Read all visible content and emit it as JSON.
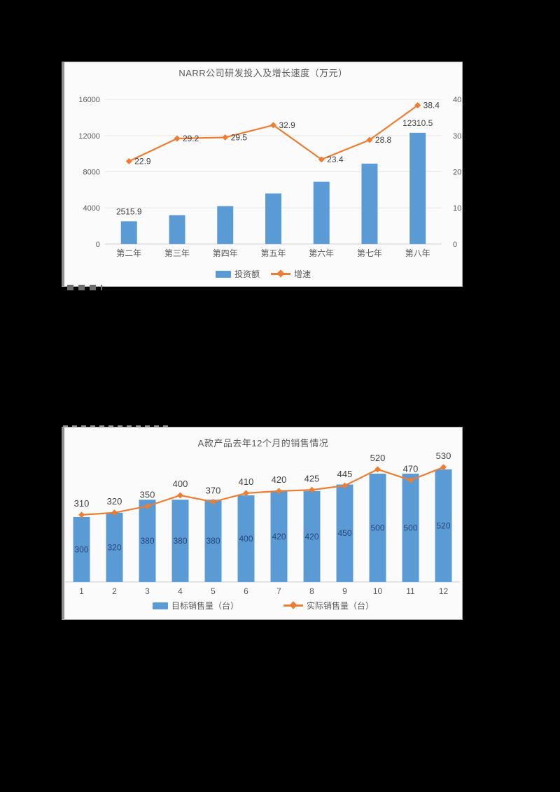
{
  "page": {
    "background_color": "#000000",
    "bar_color": "#5b9bd5",
    "line_color": "#ed7d31",
    "axis_text_color": "#595959",
    "data_label_color": "#404040",
    "inner_bar_label_color": "#264478"
  },
  "chart_data": [
    {
      "type": "bar+line",
      "title": "NARR公司研发投入及增长速度（万元）",
      "categories": [
        "第二年",
        "第三年",
        "第四年",
        "第五年",
        "第六年",
        "第七年",
        "第八年"
      ],
      "series": [
        {
          "name": "投资额",
          "type": "bar",
          "color": "#5b9bd5",
          "axis": "left",
          "values": [
            2515.9,
            3200,
            4200,
            5600,
            6900,
            8900,
            12310.5
          ],
          "data_labels": {
            "0": "2515.9",
            "6": "12310.5"
          }
        },
        {
          "name": "增速",
          "type": "line",
          "color": "#ed7d31",
          "axis": "right",
          "values": [
            22.9,
            29.2,
            29.5,
            32.9,
            23.4,
            28.8,
            38.4
          ],
          "label_all": true
        }
      ],
      "left_axis": {
        "ticks": [
          0,
          4000,
          8000,
          12000,
          16000
        ],
        "max": 16000
      },
      "right_axis": {
        "ticks": [
          0,
          10,
          20,
          30,
          40
        ],
        "max": 40
      },
      "grid": true,
      "legend": [
        "投资额",
        "增速"
      ],
      "legend_position": "bottom"
    },
    {
      "type": "bar+line",
      "title": "A款产品去年12个月的销售情况",
      "categories": [
        "1",
        "2",
        "3",
        "4",
        "5",
        "6",
        "7",
        "8",
        "9",
        "10",
        "11",
        "12"
      ],
      "series": [
        {
          "name": "目标销售量（台）",
          "type": "bar",
          "color": "#5b9bd5",
          "axis": "left",
          "values": [
            300,
            320,
            380,
            380,
            380,
            400,
            420,
            420,
            450,
            500,
            500,
            520
          ],
          "label_position": "center",
          "label_color": "#264478"
        },
        {
          "name": "实际销售量（台）",
          "type": "line",
          "color": "#ed7d31",
          "axis": "left",
          "values": [
            310,
            320,
            350,
            400,
            370,
            410,
            420,
            425,
            445,
            520,
            470,
            530
          ],
          "label_all": true,
          "label_position": "above"
        }
      ],
      "left_axis": {
        "ticks": [],
        "max": 590
      },
      "right_axis": {
        "ticks": [],
        "max": 590
      },
      "grid": false,
      "legend": [
        "目标销售量（台）",
        "实际销售量（台）"
      ],
      "legend_position": "bottom"
    }
  ]
}
